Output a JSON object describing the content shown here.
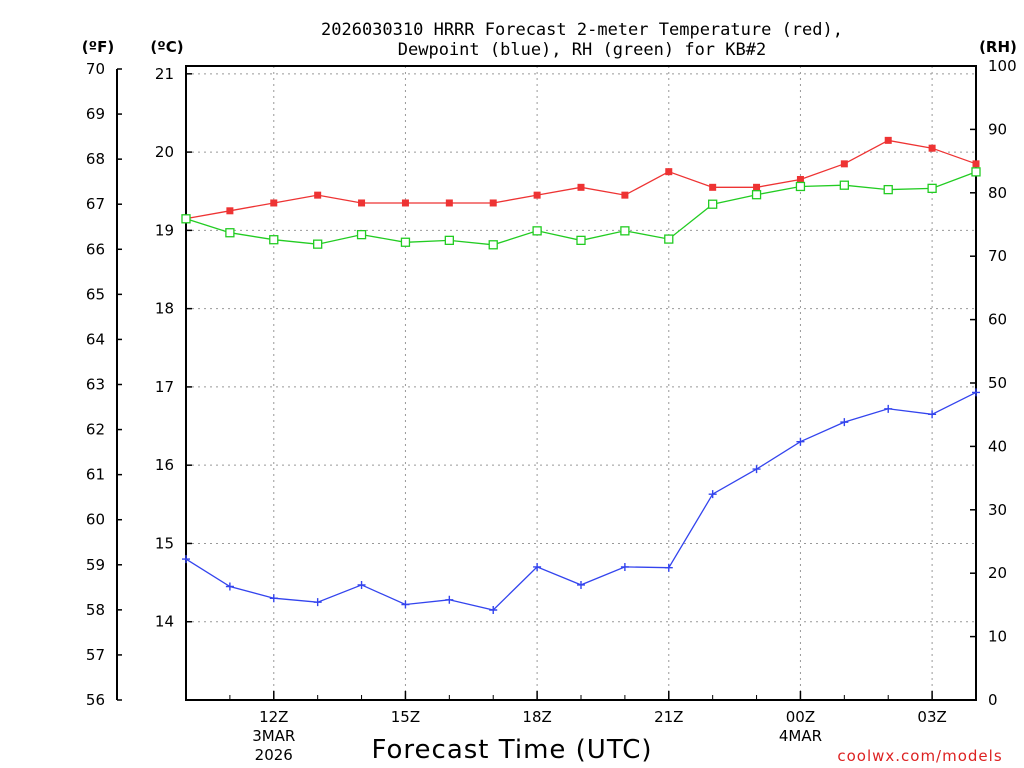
{
  "chart_data": {
    "type": "line",
    "title_line1": "2026030310 HRRR Forecast 2-meter Temperature (red),",
    "title_line2": "Dewpoint (blue), RH (green) for KB#2",
    "xlabel": "Forecast Time (UTC)",
    "credit": "coolwx.com/models",
    "unit_labels": {
      "fahrenheit": "(ºF)",
      "celsius": "(ºC)",
      "rh": "(RH)"
    },
    "x_hours": [
      10,
      11,
      12,
      13,
      14,
      15,
      16,
      17,
      18,
      19,
      20,
      21,
      22,
      23,
      24,
      25,
      26,
      27,
      28
    ],
    "x_range": [
      10,
      28
    ],
    "x_ticks": [
      {
        "hour": 12,
        "label": "12Z",
        "sub1": "3MAR",
        "sub2": "2026"
      },
      {
        "hour": 15,
        "label": "15Z",
        "sub1": "",
        "sub2": ""
      },
      {
        "hour": 18,
        "label": "18Z",
        "sub1": "",
        "sub2": ""
      },
      {
        "hour": 21,
        "label": "21Z",
        "sub1": "",
        "sub2": ""
      },
      {
        "hour": 24,
        "label": "00Z",
        "sub1": "4MAR",
        "sub2": ""
      },
      {
        "hour": 27,
        "label": "03Z",
        "sub1": "",
        "sub2": ""
      }
    ],
    "celsius_range": [
      13,
      21.1
    ],
    "celsius_ticks": [
      14,
      15,
      16,
      17,
      18,
      19,
      20,
      21
    ],
    "fahrenheit_ticks": [
      56,
      57,
      58,
      59,
      60,
      61,
      62,
      63,
      64,
      65,
      66,
      67,
      68,
      69,
      70
    ],
    "rh_range": [
      0,
      100
    ],
    "rh_ticks": [
      0,
      10,
      20,
      30,
      40,
      50,
      60,
      70,
      80,
      90,
      100
    ],
    "series": [
      {
        "name": "Temperature",
        "axis": "celsius",
        "color": "#ee3333",
        "marker": "filled-square",
        "values": [
          19.15,
          19.25,
          19.35,
          19.45,
          19.35,
          19.35,
          19.35,
          19.35,
          19.45,
          19.55,
          19.45,
          19.75,
          19.55,
          19.55,
          19.65,
          19.85,
          20.15,
          20.05,
          19.85
        ]
      },
      {
        "name": "Dewpoint",
        "axis": "celsius",
        "color": "#3344ee",
        "marker": "plus",
        "values": [
          14.8,
          14.45,
          14.3,
          14.25,
          14.47,
          14.22,
          14.28,
          14.15,
          14.7,
          14.47,
          14.7,
          14.69,
          15.63,
          15.95,
          16.3,
          16.55,
          16.72,
          16.65,
          16.93
        ]
      },
      {
        "name": "RH",
        "axis": "rh",
        "color": "#22cc22",
        "marker": "open-square",
        "values": [
          75.9,
          73.7,
          72.6,
          71.9,
          73.4,
          72.2,
          72.5,
          71.8,
          74.0,
          72.5,
          74.0,
          72.7,
          78.2,
          79.7,
          81.0,
          81.2,
          80.5,
          80.7,
          83.3
        ]
      }
    ]
  }
}
